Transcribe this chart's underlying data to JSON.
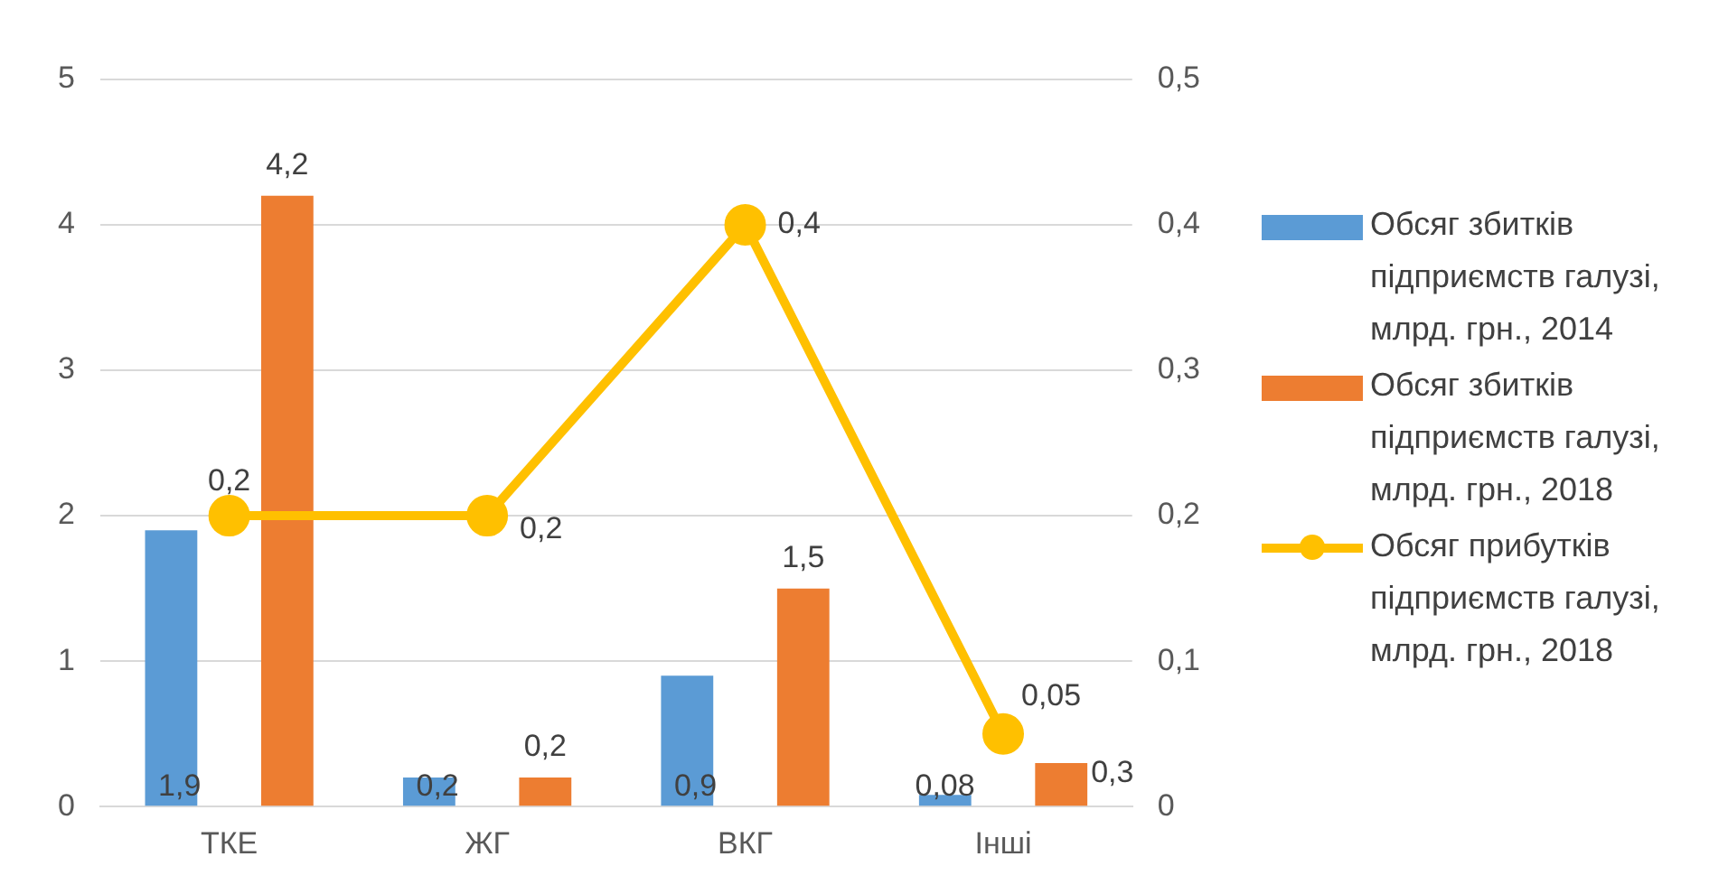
{
  "chart_data": {
    "type": "bar",
    "categories": [
      "ТКЕ",
      "ЖГ",
      "ВКГ",
      "Інші"
    ],
    "series": [
      {
        "name": "Обсяг збитків підприємств галузі, млрд. грн., 2014",
        "color": "#5b9bd5",
        "values": [
          1.9,
          0.2,
          0.9,
          0.08
        ],
        "value_labels": [
          "1,9",
          "0,2",
          "0,9",
          "0,08"
        ]
      },
      {
        "name": "Обсяг збитків підприємств галузі, млрд. грн., 2018",
        "color": "#ed7d31",
        "values": [
          4.2,
          0.2,
          1.5,
          0.3
        ],
        "value_labels": [
          "4,2",
          "0,2",
          "1,5",
          "0,3"
        ]
      },
      {
        "name": "Обсяг прибутків підприємств галузі, млрд. грн., 2018",
        "color": "#ffc000",
        "type": "line",
        "axis": "y2",
        "marker": "circle",
        "line_style": "solid",
        "values": [
          0.2,
          0.2,
          0.4,
          0.05
        ],
        "value_labels": [
          "0,2",
          "0,2",
          "0,4",
          "0,05"
        ]
      }
    ],
    "ylim": [
      0,
      5
    ],
    "yticks": [
      0,
      1,
      2,
      3,
      4,
      5
    ],
    "y2lim": [
      0,
      0.5
    ],
    "y2ticks": [
      {
        "value": 0,
        "label": "0"
      },
      {
        "value": 0.1,
        "label": "0,1"
      },
      {
        "value": 0.2,
        "label": "0,2"
      },
      {
        "value": 0.3,
        "label": "0,3"
      },
      {
        "value": 0.4,
        "label": "0,4"
      },
      {
        "value": 0.5,
        "label": "0,5"
      }
    ],
    "grid": "y",
    "legend": "right"
  }
}
